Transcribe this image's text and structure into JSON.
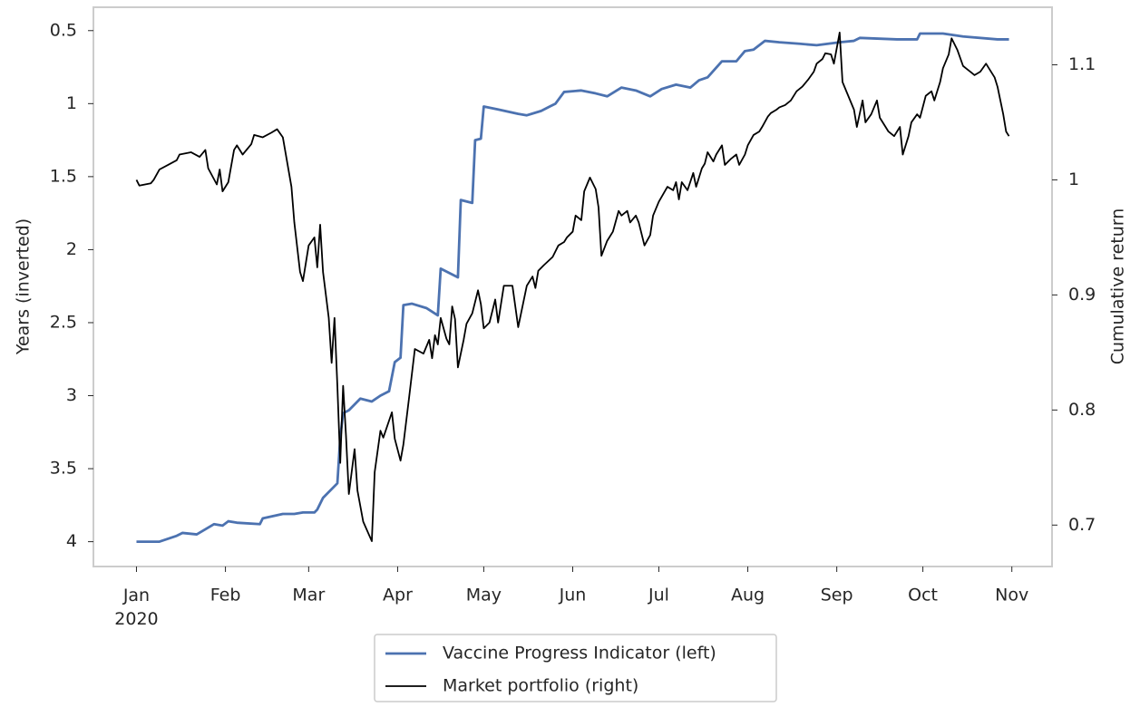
{
  "chart_data": {
    "type": "line",
    "ylabel": "Years (inverted)",
    "y2label": "Cumulative return",
    "xlim": [
      "2019-12-17",
      "2020-11-15"
    ],
    "xticks": [
      {
        "value": "2020-01-01",
        "label": "Jan\n2020"
      },
      {
        "value": "2020-02-01",
        "label": "Feb"
      },
      {
        "value": "2020-03-01",
        "label": "Mar"
      },
      {
        "value": "2020-04-01",
        "label": "Apr"
      },
      {
        "value": "2020-05-01",
        "label": "May"
      },
      {
        "value": "2020-06-01",
        "label": "Jun"
      },
      {
        "value": "2020-07-01",
        "label": "Jul"
      },
      {
        "value": "2020-08-01",
        "label": "Aug"
      },
      {
        "value": "2020-09-01",
        "label": "Sep"
      },
      {
        "value": "2020-10-01",
        "label": "Oct"
      },
      {
        "value": "2020-11-01",
        "label": "Nov"
      }
    ],
    "ylim": [
      0.34,
      4.17
    ],
    "yinverted": true,
    "yticks": [
      0.5,
      1.0,
      1.5,
      2.0,
      2.5,
      3.0,
      3.5,
      4.0
    ],
    "y2lim": [
      0.664,
      1.15
    ],
    "y2ticks": [
      0.7,
      0.8,
      0.9,
      1.0,
      1.1
    ],
    "grid": false,
    "legend": "below",
    "series": [
      {
        "name": "Vaccine Progress Indicator (left)",
        "color": "#4c72b0",
        "axis": "y",
        "x": [
          "2020-01-01",
          "2020-01-09",
          "2020-01-15",
          "2020-01-17",
          "2020-01-22",
          "2020-01-28",
          "2020-01-31",
          "2020-02-02",
          "2020-02-05",
          "2020-02-13",
          "2020-02-14",
          "2020-02-21",
          "2020-02-25",
          "2020-02-28",
          "2020-03-03",
          "2020-03-04",
          "2020-03-06",
          "2020-03-11",
          "2020-03-12",
          "2020-03-13",
          "2020-03-15",
          "2020-03-19",
          "2020-03-23",
          "2020-03-26",
          "2020-03-29",
          "2020-03-31",
          "2020-04-02",
          "2020-04-03",
          "2020-04-06",
          "2020-04-11",
          "2020-04-15",
          "2020-04-16",
          "2020-04-22",
          "2020-04-23",
          "2020-04-27",
          "2020-04-28",
          "2020-04-30",
          "2020-05-01",
          "2020-05-06",
          "2020-05-13",
          "2020-05-16",
          "2020-05-21",
          "2020-05-24",
          "2020-05-26",
          "2020-05-29",
          "2020-06-04",
          "2020-06-09",
          "2020-06-13",
          "2020-06-18",
          "2020-06-23",
          "2020-06-28",
          "2020-07-02",
          "2020-07-07",
          "2020-07-12",
          "2020-07-15",
          "2020-07-18",
          "2020-07-23",
          "2020-07-28",
          "2020-07-31",
          "2020-08-03",
          "2020-08-07",
          "2020-08-12",
          "2020-08-19",
          "2020-08-25",
          "2020-09-02",
          "2020-09-07",
          "2020-09-09",
          "2020-09-22",
          "2020-09-29",
          "2020-09-30",
          "2020-10-08",
          "2020-10-15",
          "2020-10-27",
          "2020-10-31"
        ],
        "values": [
          4.0,
          4.0,
          3.96,
          3.94,
          3.95,
          3.88,
          3.89,
          3.86,
          3.87,
          3.88,
          3.84,
          3.81,
          3.81,
          3.8,
          3.8,
          3.78,
          3.7,
          3.6,
          3.29,
          3.12,
          3.1,
          3.02,
          3.04,
          3.0,
          2.97,
          2.77,
          2.74,
          2.38,
          2.37,
          2.4,
          2.45,
          2.13,
          2.19,
          1.66,
          1.68,
          1.25,
          1.24,
          1.02,
          1.04,
          1.07,
          1.08,
          1.05,
          1.02,
          1.0,
          0.92,
          0.91,
          0.93,
          0.95,
          0.89,
          0.91,
          0.95,
          0.9,
          0.87,
          0.89,
          0.84,
          0.82,
          0.71,
          0.71,
          0.64,
          0.63,
          0.57,
          0.58,
          0.59,
          0.6,
          0.58,
          0.57,
          0.55,
          0.56,
          0.56,
          0.52,
          0.52,
          0.54,
          0.56,
          0.56
        ]
      },
      {
        "name": "Market portfolio (right)",
        "color": "#000000",
        "axis": "y2",
        "x": [
          "2020-01-01",
          "2020-01-02",
          "2020-01-06",
          "2020-01-07",
          "2020-01-09",
          "2020-01-12",
          "2020-01-15",
          "2020-01-16",
          "2020-01-20",
          "2020-01-23",
          "2020-01-25",
          "2020-01-26",
          "2020-01-29",
          "2020-01-30",
          "2020-01-31",
          "2020-02-02",
          "2020-02-04",
          "2020-02-05",
          "2020-02-07",
          "2020-02-10",
          "2020-02-11",
          "2020-02-14",
          "2020-02-17",
          "2020-02-19",
          "2020-02-21",
          "2020-02-24",
          "2020-02-25",
          "2020-02-27",
          "2020-02-28",
          "2020-03-01",
          "2020-03-03",
          "2020-03-04",
          "2020-03-05",
          "2020-03-06",
          "2020-03-08",
          "2020-03-09",
          "2020-03-10",
          "2020-03-11",
          "2020-03-12",
          "2020-03-13",
          "2020-03-14",
          "2020-03-15",
          "2020-03-17",
          "2020-03-18",
          "2020-03-20",
          "2020-03-23",
          "2020-03-24",
          "2020-03-26",
          "2020-03-27",
          "2020-03-30",
          "2020-03-31",
          "2020-04-02",
          "2020-04-03",
          "2020-04-05",
          "2020-04-07",
          "2020-04-10",
          "2020-04-12",
          "2020-04-13",
          "2020-04-14",
          "2020-04-15",
          "2020-04-16",
          "2020-04-18",
          "2020-04-19",
          "2020-04-20",
          "2020-04-21",
          "2020-04-22",
          "2020-04-24",
          "2020-04-25",
          "2020-04-27",
          "2020-04-29",
          "2020-04-30",
          "2020-05-01",
          "2020-05-03",
          "2020-05-05",
          "2020-05-06",
          "2020-05-08",
          "2020-05-11",
          "2020-05-13",
          "2020-05-14",
          "2020-05-16",
          "2020-05-18",
          "2020-05-19",
          "2020-05-20",
          "2020-05-22",
          "2020-05-25",
          "2020-05-27",
          "2020-05-29",
          "2020-05-30",
          "2020-06-01",
          "2020-06-02",
          "2020-06-04",
          "2020-06-05",
          "2020-06-07",
          "2020-06-09",
          "2020-06-10",
          "2020-06-11",
          "2020-06-13",
          "2020-06-15",
          "2020-06-17",
          "2020-06-18",
          "2020-06-20",
          "2020-06-21",
          "2020-06-23",
          "2020-06-24",
          "2020-06-26",
          "2020-06-28",
          "2020-06-29",
          "2020-07-01",
          "2020-07-04",
          "2020-07-06",
          "2020-07-07",
          "2020-07-08",
          "2020-07-09",
          "2020-07-11",
          "2020-07-13",
          "2020-07-14",
          "2020-07-16",
          "2020-07-17",
          "2020-07-18",
          "2020-07-20",
          "2020-07-21",
          "2020-07-23",
          "2020-07-24",
          "2020-07-26",
          "2020-07-28",
          "2020-07-29",
          "2020-07-31",
          "2020-08-01",
          "2020-08-03",
          "2020-08-05",
          "2020-08-06",
          "2020-08-08",
          "2020-08-09",
          "2020-08-11",
          "2020-08-12",
          "2020-08-14",
          "2020-08-16",
          "2020-08-18",
          "2020-08-20",
          "2020-08-22",
          "2020-08-24",
          "2020-08-25",
          "2020-08-27",
          "2020-08-28",
          "2020-08-30",
          "2020-08-31",
          "2020-09-02",
          "2020-09-03",
          "2020-09-05",
          "2020-09-07",
          "2020-09-08",
          "2020-09-10",
          "2020-09-11",
          "2020-09-13",
          "2020-09-15",
          "2020-09-16",
          "2020-09-18",
          "2020-09-19",
          "2020-09-21",
          "2020-09-23",
          "2020-09-24",
          "2020-09-26",
          "2020-09-27",
          "2020-09-29",
          "2020-09-30",
          "2020-10-02",
          "2020-10-04",
          "2020-10-05",
          "2020-10-07",
          "2020-10-08",
          "2020-10-10",
          "2020-10-11",
          "2020-10-13",
          "2020-10-15",
          "2020-10-16",
          "2020-10-18",
          "2020-10-19",
          "2020-10-21",
          "2020-10-23",
          "2020-10-24",
          "2020-10-26",
          "2020-10-27",
          "2020-10-29",
          "2020-10-30",
          "2020-10-31"
        ],
        "values": [
          1.0,
          0.995,
          0.997,
          1.0,
          1.009,
          1.013,
          1.017,
          1.022,
          1.024,
          1.02,
          1.026,
          1.01,
          0.996,
          1.009,
          0.99,
          0.998,
          1.026,
          1.03,
          1.022,
          1.031,
          1.039,
          1.037,
          1.041,
          1.044,
          1.037,
          0.994,
          0.963,
          0.92,
          0.912,
          0.943,
          0.95,
          0.924,
          0.961,
          0.92,
          0.88,
          0.841,
          0.88,
          0.821,
          0.754,
          0.821,
          0.778,
          0.727,
          0.766,
          0.73,
          0.703,
          0.686,
          0.746,
          0.782,
          0.776,
          0.798,
          0.775,
          0.756,
          0.77,
          0.811,
          0.853,
          0.849,
          0.861,
          0.845,
          0.865,
          0.857,
          0.88,
          0.862,
          0.857,
          0.89,
          0.879,
          0.837,
          0.861,
          0.875,
          0.884,
          0.904,
          0.892,
          0.871,
          0.876,
          0.896,
          0.876,
          0.908,
          0.908,
          0.872,
          0.884,
          0.908,
          0.916,
          0.906,
          0.921,
          0.926,
          0.933,
          0.943,
          0.946,
          0.95,
          0.955,
          0.969,
          0.965,
          0.99,
          1.002,
          0.992,
          0.976,
          0.934,
          0.947,
          0.955,
          0.973,
          0.969,
          0.973,
          0.963,
          0.969,
          0.963,
          0.943,
          0.952,
          0.969,
          0.981,
          0.994,
          0.991,
          0.998,
          0.983,
          0.998,
          0.991,
          1.006,
          0.994,
          1.01,
          1.014,
          1.024,
          1.016,
          1.022,
          1.03,
          1.013,
          1.018,
          1.022,
          1.013,
          1.022,
          1.03,
          1.039,
          1.042,
          1.046,
          1.055,
          1.058,
          1.061,
          1.063,
          1.065,
          1.069,
          1.077,
          1.081,
          1.087,
          1.094,
          1.101,
          1.105,
          1.11,
          1.109,
          1.101,
          1.128,
          1.085,
          1.073,
          1.061,
          1.046,
          1.069,
          1.05,
          1.057,
          1.069,
          1.054,
          1.046,
          1.042,
          1.038,
          1.046,
          1.022,
          1.038,
          1.05,
          1.057,
          1.054,
          1.073,
          1.077,
          1.069,
          1.085,
          1.097,
          1.109,
          1.123,
          1.113,
          1.099,
          1.097,
          1.093,
          1.091,
          1.094,
          1.101,
          1.097,
          1.089,
          1.081,
          1.057,
          1.042,
          1.038
        ]
      }
    ]
  }
}
